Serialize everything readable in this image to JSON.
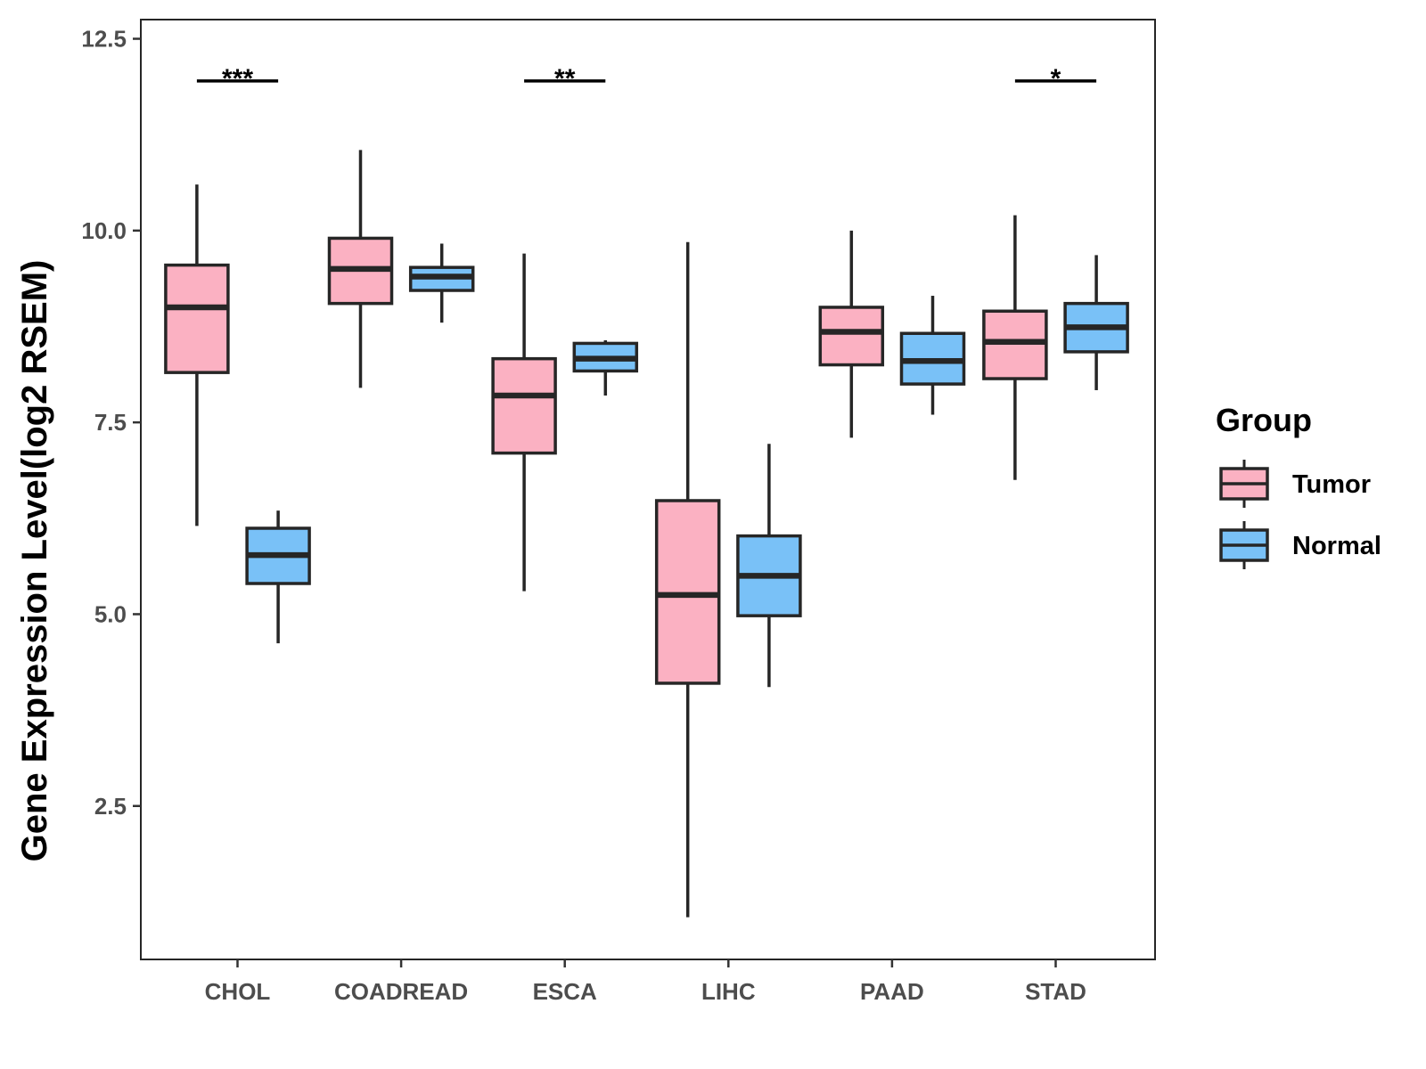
{
  "chart_data": {
    "type": "boxplot",
    "title": "",
    "xlabel": "",
    "ylabel": "Gene Expression Level(log2 RSEM)",
    "ylim": [
      0.5,
      12.75
    ],
    "yticks": [
      "2.5",
      "5.0",
      "7.5",
      "10.0",
      "12.5"
    ],
    "categories": [
      "CHOL",
      "COADREAD",
      "ESCA",
      "LIHC",
      "PAAD",
      "STAD"
    ],
    "grid": false,
    "legend": {
      "title": "Group",
      "position": "right",
      "entries": [
        "Tumor",
        "Normal"
      ]
    },
    "colors": {
      "Tumor": "#FBB1C2",
      "Normal": "#79C1F7",
      "outline": "#262626"
    },
    "series": [
      {
        "name": "Tumor",
        "boxes": [
          {
            "category": "CHOL",
            "min": 6.15,
            "q1": 8.15,
            "median": 9.0,
            "q3": 9.55,
            "max": 10.6
          },
          {
            "category": "COADREAD",
            "min": 7.95,
            "q1": 9.05,
            "median": 9.5,
            "q3": 9.9,
            "max": 11.05
          },
          {
            "category": "ESCA",
            "min": 5.3,
            "q1": 7.1,
            "median": 7.85,
            "q3": 8.33,
            "max": 9.7
          },
          {
            "category": "LIHC",
            "min": 1.05,
            "q1": 4.1,
            "median": 5.25,
            "q3": 6.48,
            "max": 9.85
          },
          {
            "category": "PAAD",
            "min": 7.3,
            "q1": 8.25,
            "median": 8.68,
            "q3": 9.0,
            "max": 10.0
          },
          {
            "category": "STAD",
            "min": 6.75,
            "q1": 8.07,
            "median": 8.55,
            "q3": 8.95,
            "max": 10.2
          }
        ]
      },
      {
        "name": "Normal",
        "boxes": [
          {
            "category": "CHOL",
            "min": 4.62,
            "q1": 5.4,
            "median": 5.77,
            "q3": 6.12,
            "max": 6.35
          },
          {
            "category": "COADREAD",
            "min": 8.8,
            "q1": 9.22,
            "median": 9.4,
            "q3": 9.52,
            "max": 9.83
          },
          {
            "category": "ESCA",
            "min": 7.85,
            "q1": 8.17,
            "median": 8.33,
            "q3": 8.53,
            "max": 8.57
          },
          {
            "category": "LIHC",
            "min": 4.05,
            "q1": 4.98,
            "median": 5.5,
            "q3": 6.02,
            "max": 7.22
          },
          {
            "category": "PAAD",
            "min": 7.6,
            "q1": 8.0,
            "median": 8.3,
            "q3": 8.66,
            "max": 9.15
          },
          {
            "category": "STAD",
            "min": 7.92,
            "q1": 8.42,
            "median": 8.74,
            "q3": 9.05,
            "max": 9.68
          }
        ]
      }
    ],
    "significance": [
      {
        "category": "CHOL",
        "label": "***",
        "y": 11.95
      },
      {
        "category": "ESCA",
        "label": "**",
        "y": 11.95
      },
      {
        "category": "STAD",
        "label": "*",
        "y": 11.95
      }
    ]
  }
}
